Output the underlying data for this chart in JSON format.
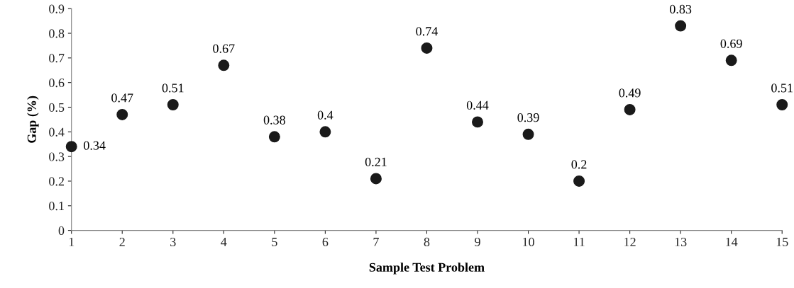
{
  "chart_data": {
    "type": "scatter",
    "xlabel": "Sample Test Problem",
    "ylabel": "Gap (%)",
    "x": [
      1,
      2,
      3,
      4,
      5,
      6,
      7,
      8,
      9,
      10,
      11,
      12,
      13,
      14,
      15
    ],
    "values": [
      0.34,
      0.47,
      0.51,
      0.67,
      0.38,
      0.4,
      0.21,
      0.74,
      0.44,
      0.39,
      0.2,
      0.49,
      0.83,
      0.69,
      0.51
    ],
    "color": "#1a1a1a",
    "marker": "circle",
    "data_labels": true,
    "grid": false,
    "legend": false,
    "xlim": [
      1,
      15
    ],
    "xticks": [
      1,
      2,
      3,
      4,
      5,
      6,
      7,
      8,
      9,
      10,
      11,
      12,
      13,
      14,
      15
    ],
    "ylim": [
      0,
      0.9
    ],
    "yticks": [
      0,
      0.1,
      0.2,
      0.3,
      0.4,
      0.5,
      0.6,
      0.7,
      0.8,
      0.9
    ]
  }
}
